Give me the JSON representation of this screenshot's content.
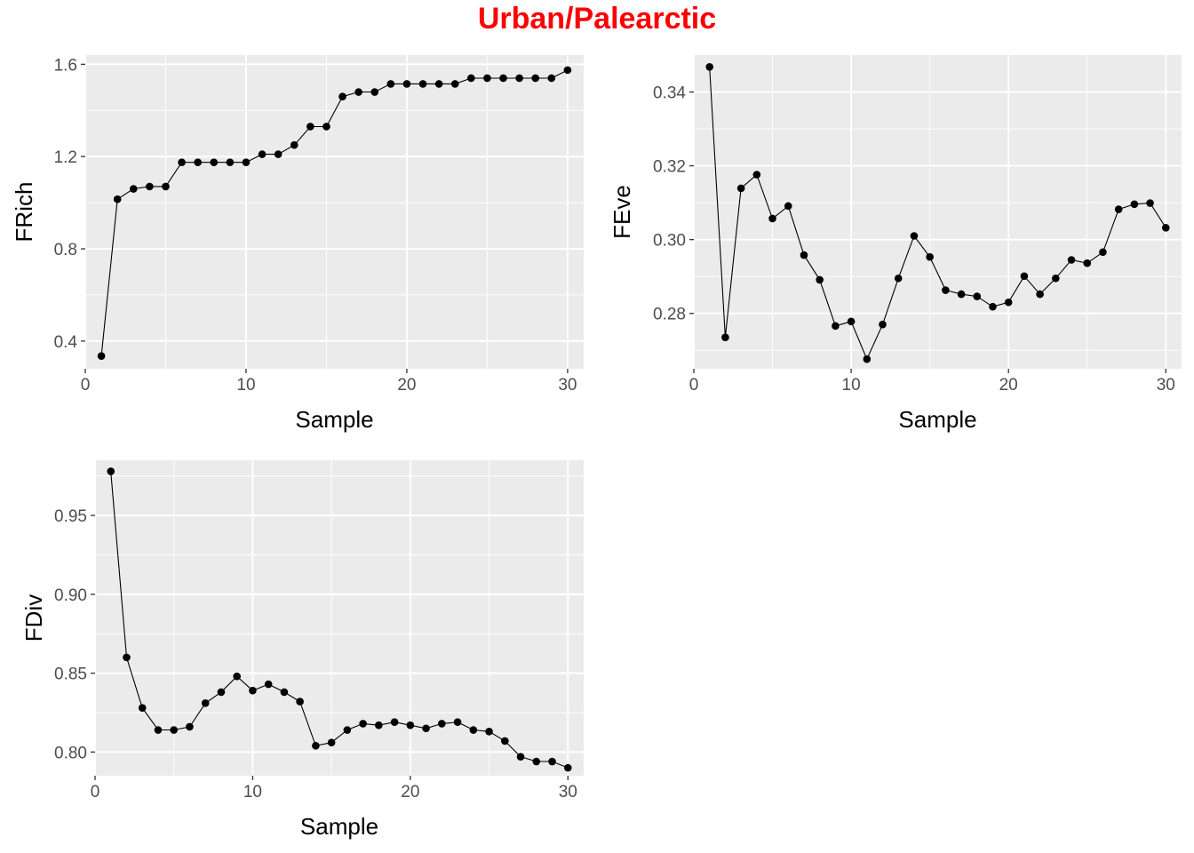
{
  "title": "Urban/Palearctic",
  "colors": {
    "title": "#ff0000",
    "panel_bg": "#ebebeb",
    "grid": "#ffffff",
    "series": "#000000",
    "tick_label": "#4d4d4d"
  },
  "chart_data": [
    {
      "type": "line",
      "xlabel": "Sample",
      "ylabel": "FRich",
      "xlim": [
        0,
        31
      ],
      "ylim": [
        0.28,
        1.64
      ],
      "xticks": [
        0,
        10,
        20,
        30
      ],
      "yticks": [
        0.4,
        0.8,
        1.2,
        1.6
      ],
      "ytick_labels": [
        "0.4",
        "0.8",
        "1.2",
        "1.6"
      ],
      "grid": true,
      "x": [
        1,
        2,
        3,
        4,
        5,
        6,
        7,
        8,
        9,
        10,
        11,
        12,
        13,
        14,
        15,
        16,
        17,
        18,
        19,
        20,
        21,
        22,
        23,
        24,
        25,
        26,
        27,
        28,
        29,
        30
      ],
      "y": [
        0.335,
        1.015,
        1.06,
        1.07,
        1.07,
        1.175,
        1.175,
        1.175,
        1.175,
        1.175,
        1.21,
        1.21,
        1.25,
        1.33,
        1.33,
        1.46,
        1.48,
        1.48,
        1.515,
        1.515,
        1.515,
        1.515,
        1.515,
        1.54,
        1.54,
        1.54,
        1.54,
        1.54,
        1.54,
        1.575
      ]
    },
    {
      "type": "line",
      "xlabel": "Sample",
      "ylabel": "FEve",
      "xlim": [
        0,
        31
      ],
      "ylim": [
        0.265,
        0.35
      ],
      "xticks": [
        0,
        10,
        20,
        30
      ],
      "yticks": [
        0.28,
        0.3,
        0.32,
        0.34
      ],
      "ytick_labels": [
        "0.28",
        "0.30",
        "0.32",
        "0.34"
      ],
      "grid": true,
      "x": [
        1,
        2,
        3,
        4,
        5,
        6,
        7,
        8,
        9,
        10,
        11,
        12,
        13,
        14,
        15,
        16,
        17,
        18,
        19,
        20,
        21,
        22,
        23,
        24,
        25,
        26,
        27,
        28,
        29,
        30
      ],
      "y": [
        0.3468,
        0.2735,
        0.3139,
        0.3176,
        0.3057,
        0.3091,
        0.2958,
        0.2891,
        0.2766,
        0.2778,
        0.2676,
        0.277,
        0.2895,
        0.301,
        0.2953,
        0.2863,
        0.2852,
        0.2846,
        0.2818,
        0.283,
        0.2901,
        0.2852,
        0.2895,
        0.2945,
        0.2936,
        0.2966,
        0.3082,
        0.3096,
        0.3099,
        0.3032
      ]
    },
    {
      "type": "line",
      "xlabel": "Sample",
      "ylabel": "FDiv",
      "xlim": [
        0,
        31
      ],
      "ylim": [
        0.785,
        0.985
      ],
      "xticks": [
        0,
        10,
        20,
        30
      ],
      "yticks": [
        0.8,
        0.85,
        0.9,
        0.95
      ],
      "ytick_labels": [
        "0.80",
        "0.85",
        "0.90",
        "0.95"
      ],
      "grid": true,
      "x": [
        1,
        2,
        3,
        4,
        5,
        6,
        7,
        8,
        9,
        10,
        11,
        12,
        13,
        14,
        15,
        16,
        17,
        18,
        19,
        20,
        21,
        22,
        23,
        24,
        25,
        26,
        27,
        28,
        29,
        30
      ],
      "y": [
        0.978,
        0.86,
        0.828,
        0.814,
        0.814,
        0.816,
        0.831,
        0.838,
        0.848,
        0.839,
        0.843,
        0.838,
        0.832,
        0.804,
        0.806,
        0.814,
        0.818,
        0.817,
        0.819,
        0.817,
        0.815,
        0.818,
        0.819,
        0.814,
        0.813,
        0.807,
        0.797,
        0.794,
        0.794,
        0.79
      ]
    }
  ]
}
